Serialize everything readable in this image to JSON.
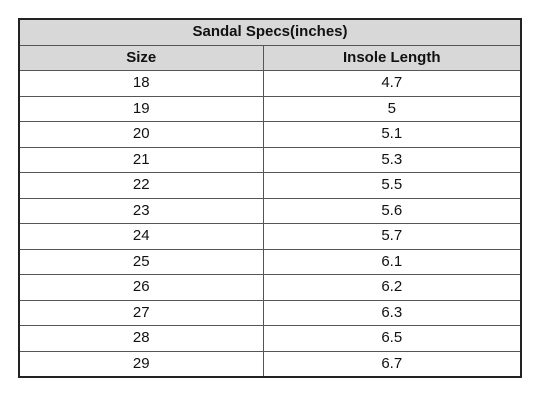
{
  "table": {
    "title": "Sandal Specs(inches)",
    "headers": [
      "Size",
      "Insole Length"
    ],
    "rows": [
      [
        "18",
        "4.7"
      ],
      [
        "19",
        "5"
      ],
      [
        "20",
        "5.1"
      ],
      [
        "21",
        "5.3"
      ],
      [
        "22",
        "5.5"
      ],
      [
        "23",
        "5.6"
      ],
      [
        "24",
        "5.7"
      ],
      [
        "25",
        "6.1"
      ],
      [
        "26",
        "6.2"
      ],
      [
        "27",
        "6.3"
      ],
      [
        "28",
        "6.5"
      ],
      [
        "29",
        "6.7"
      ]
    ]
  },
  "colors": {
    "header_bg": "#d8d8d8",
    "border": "#555555",
    "text": "#111111"
  }
}
